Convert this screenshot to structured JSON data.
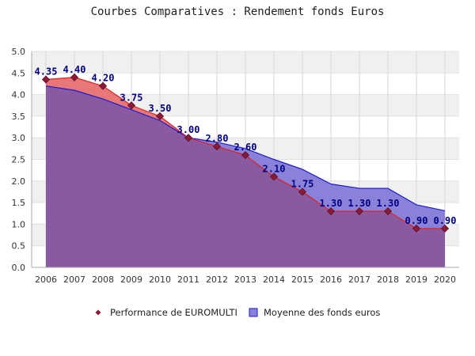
{
  "chart_data": {
    "type": "area",
    "title": "Courbes Comparatives : Rendement fonds Euros",
    "x": [
      "2006",
      "2007",
      "2008",
      "2009",
      "2010",
      "2011",
      "2012",
      "2013",
      "2014",
      "2015",
      "2016",
      "2017",
      "2018",
      "2019",
      "2020"
    ],
    "ylim": [
      0,
      5
    ],
    "yticks": [
      "0.0",
      "0.5",
      "1.0",
      "1.5",
      "2.0",
      "2.5",
      "3.0",
      "3.5",
      "4.0",
      "4.5",
      "5.0"
    ],
    "grid": true,
    "legend_position": "bottom",
    "series": [
      {
        "name": "Performance de EUROMULTI",
        "values": [
          4.35,
          4.4,
          4.2,
          3.75,
          3.5,
          3.0,
          2.8,
          2.6,
          2.1,
          1.75,
          1.3,
          1.3,
          1.3,
          0.9,
          0.9
        ],
        "labels": [
          "4.35",
          "4.40",
          "4.20",
          "3.75",
          "3.50",
          "3.00",
          "2.80",
          "2.60",
          "2.10",
          "1.75",
          "1.30",
          "1.30",
          "1.30",
          "0.90",
          "0.90"
        ],
        "line_color": "#dd2222",
        "fill_color": "#e87878",
        "marker_color": "#8b1a3a"
      },
      {
        "name": "Moyenne des fonds euros",
        "values": [
          4.2,
          4.1,
          3.9,
          3.65,
          3.4,
          3.0,
          2.9,
          2.75,
          2.5,
          2.27,
          1.93,
          1.83,
          1.83,
          1.45,
          1.31
        ],
        "line_color": "#1a1ad6",
        "fill_color": "#8a82d8"
      }
    ],
    "overlap_color": "#8a5aa0"
  }
}
